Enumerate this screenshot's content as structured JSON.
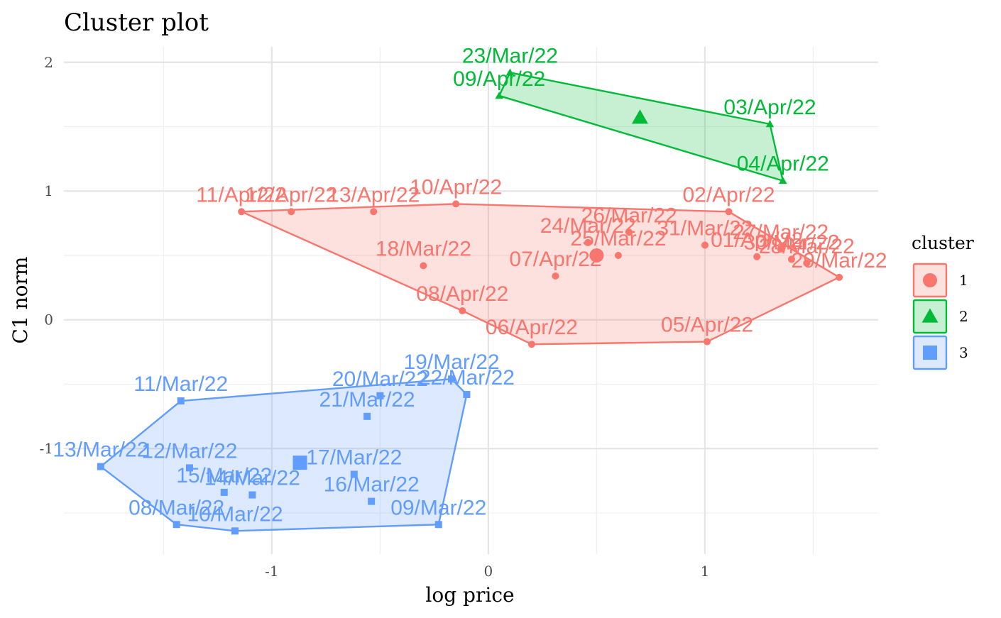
{
  "chart_data": {
    "type": "scatter",
    "title": "Cluster plot",
    "xlabel": "log price",
    "ylabel": "C1 norm",
    "xlim": [
      -1.96,
      1.8
    ],
    "ylim": [
      -1.82,
      2.12
    ],
    "x_ticks": [
      -1,
      0,
      1
    ],
    "y_ticks": [
      -1,
      0,
      1,
      2
    ],
    "x_tick_labels": [
      "-1",
      "0",
      "1"
    ],
    "y_tick_labels": [
      "-1",
      "0",
      "1",
      "2"
    ],
    "grid": true,
    "legend": {
      "title": "cluster",
      "position": "right",
      "entries": [
        "1",
        "2",
        "3"
      ]
    },
    "series": [
      {
        "name": "1",
        "color": "#F8766D",
        "shape": "circle",
        "center": {
          "x": 0.5,
          "y": 0.5
        },
        "hull": [
          "11/Apr/22",
          "10/Apr/22",
          "02/Apr/22",
          "29/Mar/22",
          "05/Apr/22",
          "06/Apr/22",
          "08/Apr/22"
        ],
        "points": [
          {
            "label": "11/Apr/22",
            "x": -1.14,
            "y": 0.84
          },
          {
            "label": "12/Apr/22",
            "x": -0.91,
            "y": 0.84
          },
          {
            "label": "13/Apr/22",
            "x": -0.53,
            "y": 0.84
          },
          {
            "label": "10/Apr/22",
            "x": -0.15,
            "y": 0.9
          },
          {
            "label": "02/Apr/22",
            "x": 1.11,
            "y": 0.84
          },
          {
            "label": "26/Mar/22",
            "x": 0.65,
            "y": 0.68
          },
          {
            "label": "24/Mar/22",
            "x": 0.46,
            "y": 0.6
          },
          {
            "label": "25/Mar/22",
            "x": 0.6,
            "y": 0.5
          },
          {
            "label": "31/Mar/22",
            "x": 1.0,
            "y": 0.58
          },
          {
            "label": "27/Mar/22",
            "x": 1.35,
            "y": 0.55
          },
          {
            "label": "01/Apr/22",
            "x": 1.24,
            "y": 0.49
          },
          {
            "label": "30/Mar/22",
            "x": 1.4,
            "y": 0.47
          },
          {
            "label": "28/Mar/22",
            "x": 1.47,
            "y": 0.44
          },
          {
            "label": "29/Mar/22",
            "x": 1.62,
            "y": 0.33
          },
          {
            "label": "18/Mar/22",
            "x": -0.3,
            "y": 0.42
          },
          {
            "label": "07/Apr/22",
            "x": 0.31,
            "y": 0.34
          },
          {
            "label": "08/Apr/22",
            "x": -0.12,
            "y": 0.07
          },
          {
            "label": "06/Apr/22",
            "x": 0.2,
            "y": -0.19
          },
          {
            "label": "05/Apr/22",
            "x": 1.01,
            "y": -0.17
          }
        ]
      },
      {
        "name": "2",
        "color": "#00BA38",
        "shape": "triangle",
        "center": {
          "x": 0.7,
          "y": 1.57
        },
        "hull": [
          "23/Mar/22",
          "03/Apr/22",
          "04/Apr/22",
          "09/Apr/22"
        ],
        "points": [
          {
            "label": "23/Mar/22",
            "x": 0.1,
            "y": 1.92
          },
          {
            "label": "09/Apr/22",
            "x": 0.05,
            "y": 1.74
          },
          {
            "label": "03/Apr/22",
            "x": 1.3,
            "y": 1.52
          },
          {
            "label": "04/Apr/22",
            "x": 1.36,
            "y": 1.08
          }
        ]
      },
      {
        "name": "3",
        "color": "#619CFF",
        "shape": "square",
        "center": {
          "x": -0.87,
          "y": -1.11
        },
        "hull": [
          "13/Mar/22",
          "11/Mar/22",
          "19/Mar/22",
          "22/Mar/22",
          "09/Mar/22",
          "10/Mar/22",
          "08/Mar/22"
        ],
        "points": [
          {
            "label": "11/Mar/22",
            "x": -1.42,
            "y": -0.63
          },
          {
            "label": "20/Mar/22",
            "x": -0.5,
            "y": -0.59
          },
          {
            "label": "19/Mar/22",
            "x": -0.17,
            "y": -0.46
          },
          {
            "label": "22/Mar/22",
            "x": -0.1,
            "y": -0.58
          },
          {
            "label": "21/Mar/22",
            "x": -0.56,
            "y": -0.75
          },
          {
            "label": "13/Mar/22",
            "x": -1.79,
            "y": -1.14
          },
          {
            "label": "12/Mar/22",
            "x": -1.38,
            "y": -1.15
          },
          {
            "label": "17/Mar/22",
            "x": -0.62,
            "y": -1.2
          },
          {
            "label": "15/Mar/22",
            "x": -1.22,
            "y": -1.34
          },
          {
            "label": "14/Mar/22",
            "x": -1.09,
            "y": -1.36
          },
          {
            "label": "16/Mar/22",
            "x": -0.54,
            "y": -1.41
          },
          {
            "label": "08/Mar/22",
            "x": -1.44,
            "y": -1.59
          },
          {
            "label": "10/Mar/22",
            "x": -1.17,
            "y": -1.64
          },
          {
            "label": "09/Mar/22",
            "x": -0.23,
            "y": -1.59
          }
        ]
      }
    ]
  }
}
